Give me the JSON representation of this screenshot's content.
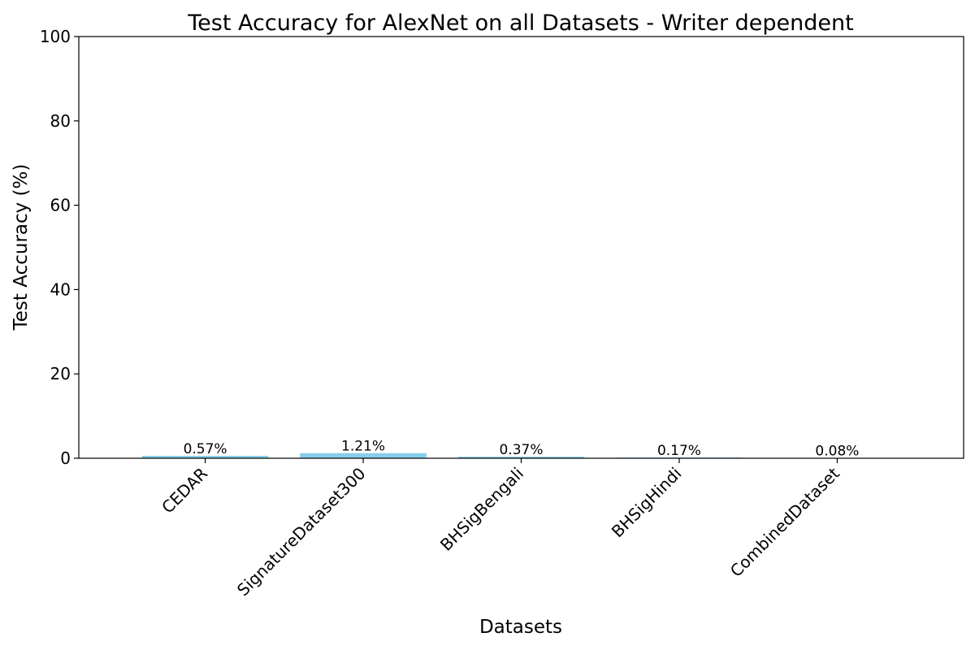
{
  "chart_data": {
    "type": "bar",
    "title": "Test Accuracy for AlexNet on all Datasets - Writer dependent",
    "xlabel": "Datasets",
    "ylabel": "Test Accuracy (%)",
    "categories": [
      "CEDAR",
      "SignatureDataset300",
      "BHSigBengali",
      "BHSigHindi",
      "CombinedDataset"
    ],
    "values": [
      0.57,
      1.21,
      0.37,
      0.17,
      0.08
    ],
    "data_labels": [
      "0.57%",
      "1.21%",
      "0.37%",
      "0.17%",
      "0.08%"
    ],
    "ylim": [
      0,
      100
    ],
    "yticks": [
      0,
      20,
      40,
      60,
      80,
      100
    ],
    "grid": false,
    "legend": "none",
    "bar_color": "#87ceeb",
    "xtick_rotation": "45"
  }
}
